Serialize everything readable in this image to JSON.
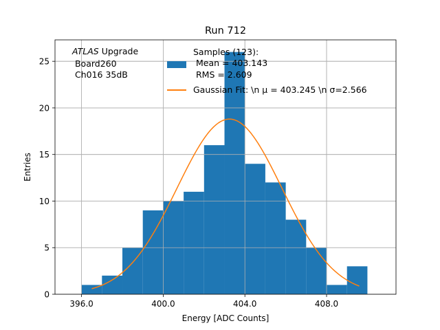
{
  "chart_data": {
    "type": "bar",
    "title": "Run 712",
    "xlabel": "Energy [ADC Counts]",
    "ylabel": "Entries",
    "xlim": [
      394.7,
      411.4
    ],
    "ylim": [
      0,
      27.3
    ],
    "grid": true,
    "xticks": [
      396,
      400,
      404,
      408
    ],
    "xtick_labels": [
      "396.0",
      "400.0",
      "404.0",
      "408.0"
    ],
    "yticks": [
      0,
      5,
      10,
      15,
      20,
      25
    ],
    "ytick_labels": [
      "0",
      "5",
      "10",
      "15",
      "20",
      "25"
    ],
    "bin_edges": [
      396,
      397,
      398,
      399,
      400,
      401,
      402,
      403,
      404,
      405,
      406,
      407,
      408,
      409,
      410
    ],
    "counts": [
      1,
      2,
      5,
      9,
      10,
      11,
      16,
      26,
      14,
      12,
      8,
      5,
      1,
      3
    ],
    "fit": {
      "mu": 403.245,
      "sigma": 2.566,
      "amplitude": 18.8,
      "x_range": [
        396.5,
        409.6
      ]
    },
    "annotation": {
      "italic": "ATLAS",
      "line1_rest": " Upgrade",
      "line2": " Board260",
      "line3": " Ch016 35dB"
    },
    "legend": {
      "placement": "top-right",
      "histogram_lines": [
        "Samples (123):",
        " Mean = 403.143",
        " RMS = 2.609"
      ],
      "fit_label": "Gaussian Fit: \\n μ = 403.245 \\n σ=2.566"
    },
    "colors": {
      "bars": "#1f77b4",
      "fit": "#ff7f0e",
      "grid": "#b0b0b0"
    }
  }
}
